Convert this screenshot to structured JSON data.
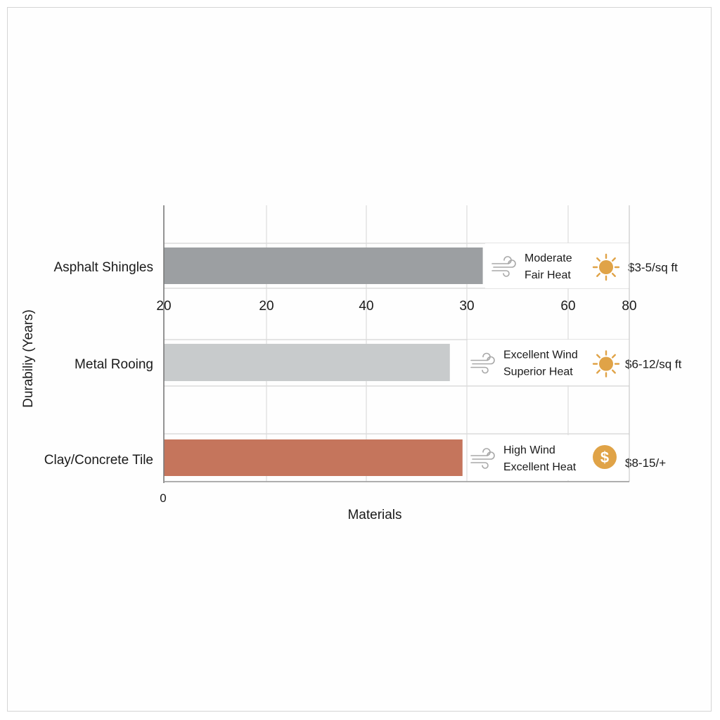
{
  "chart_data": {
    "type": "bar",
    "orientation": "horizontal",
    "title": "",
    "xlabel": "Materials",
    "ylabel": "Durabiliy (Years)",
    "x_tick_labels_top_axis": [
      "20",
      "20",
      "40",
      "30",
      "60",
      "80"
    ],
    "x_tick_label_bottom": "0",
    "grid": true,
    "categories": [
      "Asphalt Shingles",
      "Metal Rooing",
      "Clay/Concrete Tile"
    ],
    "values": [
      63,
      56.5,
      59
    ],
    "colors": [
      "#9c9fa2",
      "#c8cbcc",
      "#c5755c"
    ],
    "annotations": [
      {
        "wind": "Moderate",
        "heat": "Fair Heat",
        "icon": "sun-icon",
        "cost": "$3-5/sq ft"
      },
      {
        "wind": "Excellent Wind",
        "heat": "Superior Heat",
        "icon": "sun-icon",
        "cost": "$6-12/sq ft"
      },
      {
        "wind": "High Wind",
        "heat": "Excellent Heat",
        "icon": "dollar-icon",
        "cost": "$8-15/+"
      }
    ],
    "icon_color": "#e0a347"
  }
}
